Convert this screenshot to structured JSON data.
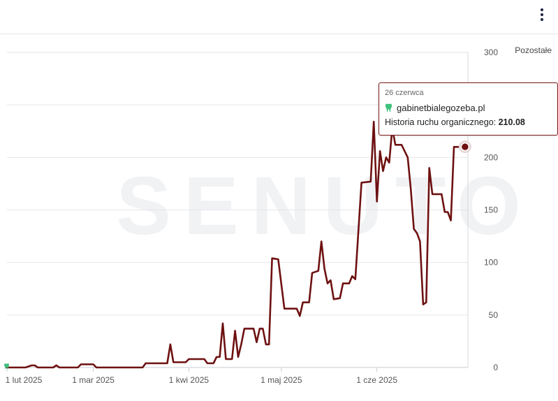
{
  "header": {
    "menu_icon": "kebab-menu-icon"
  },
  "watermark": "SENUTO",
  "chart_data": {
    "type": "line",
    "legend_label": "Pozostałe",
    "y_ticks": [
      0,
      50,
      100,
      150,
      200,
      300
    ],
    "ylim": [
      0,
      300
    ],
    "x_tick_labels": [
      "1 lut 2025",
      "1 mar 2025",
      "1 kwi 2025",
      "1 maj 2025",
      "1 cze 2025"
    ],
    "x_ticks_day_index": [
      0,
      28,
      59,
      89,
      120
    ],
    "x_range_days": [
      0,
      145
    ],
    "line_color": "#6e1111",
    "series": [
      {
        "name": "gabinetbialegozeba.pl",
        "points": [
          [
            0,
            0
          ],
          [
            6,
            0
          ],
          [
            8,
            2
          ],
          [
            9,
            2
          ],
          [
            10,
            0
          ],
          [
            15,
            0
          ],
          [
            16,
            2
          ],
          [
            17,
            0
          ],
          [
            23,
            0
          ],
          [
            24,
            3
          ],
          [
            28,
            3
          ],
          [
            29,
            0
          ],
          [
            44,
            0
          ],
          [
            45,
            4
          ],
          [
            52,
            4
          ],
          [
            53,
            22
          ],
          [
            54,
            5
          ],
          [
            58,
            5
          ],
          [
            59,
            8
          ],
          [
            64,
            8
          ],
          [
            65,
            4
          ],
          [
            67,
            4
          ],
          [
            68,
            10
          ],
          [
            69,
            10
          ],
          [
            70,
            42
          ],
          [
            71,
            8
          ],
          [
            73,
            8
          ],
          [
            74,
            35
          ],
          [
            75,
            10
          ],
          [
            76,
            22
          ],
          [
            77,
            37
          ],
          [
            80,
            37
          ],
          [
            81,
            24
          ],
          [
            82,
            37
          ],
          [
            83,
            37
          ],
          [
            84,
            22
          ],
          [
            85,
            22
          ],
          [
            86,
            104
          ],
          [
            88,
            103
          ],
          [
            90,
            56
          ],
          [
            94,
            56
          ],
          [
            95,
            49
          ],
          [
            96,
            62
          ],
          [
            98,
            62
          ],
          [
            99,
            90
          ],
          [
            101,
            92
          ],
          [
            102,
            120
          ],
          [
            103,
            94
          ],
          [
            104,
            80
          ],
          [
            105,
            83
          ],
          [
            106,
            65
          ],
          [
            108,
            66
          ],
          [
            109,
            80
          ],
          [
            111,
            80
          ],
          [
            112,
            87
          ],
          [
            113,
            84
          ],
          [
            115,
            176
          ],
          [
            118,
            177
          ],
          [
            119,
            234
          ],
          [
            120,
            158
          ],
          [
            121,
            206
          ],
          [
            122,
            187
          ],
          [
            123,
            200
          ],
          [
            124,
            195
          ],
          [
            125,
            228
          ],
          [
            126,
            212
          ],
          [
            128,
            212
          ],
          [
            130,
            200
          ],
          [
            131,
            170
          ],
          [
            132,
            132
          ],
          [
            133,
            128
          ],
          [
            134,
            120
          ],
          [
            135,
            60
          ],
          [
            136,
            62
          ],
          [
            137,
            190
          ],
          [
            138,
            165
          ],
          [
            141,
            165
          ],
          [
            142,
            148
          ],
          [
            143,
            148
          ],
          [
            144,
            140
          ],
          [
            145,
            210
          ],
          [
            148,
            210
          ],
          [
            148.6,
            210.08
          ]
        ]
      }
    ],
    "highlight": {
      "date": "26 czerwca",
      "site": "gabinetbialegozeba.pl",
      "metric_label": "Historia ruchu organicznego:",
      "value": "210.08",
      "day_index": 148.6
    }
  }
}
